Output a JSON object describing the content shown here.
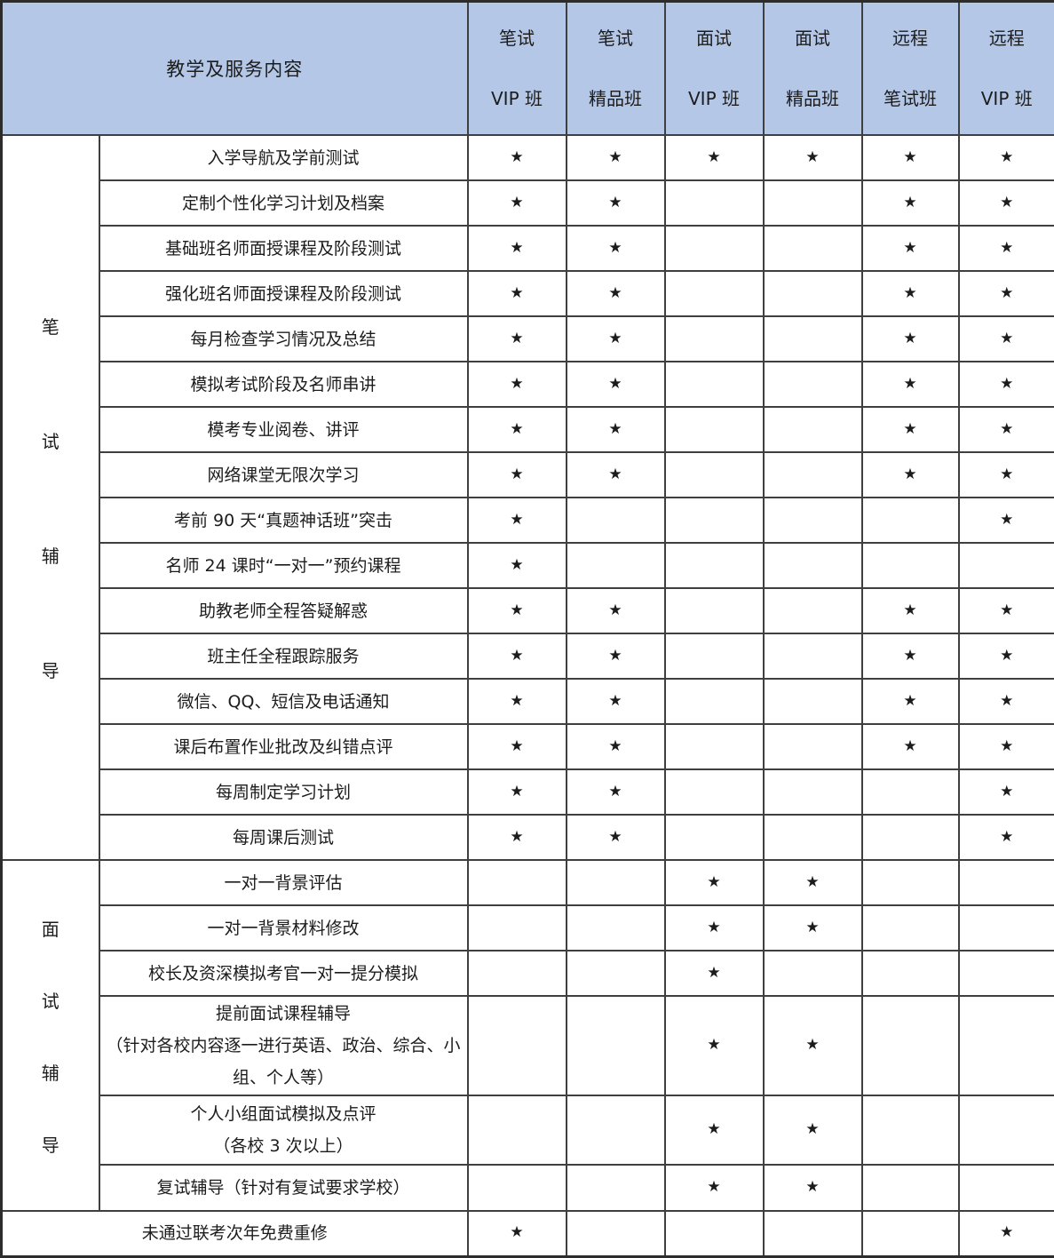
{
  "header": {
    "title": "教学及服务内容",
    "columns": [
      {
        "line1": "笔试",
        "line2": "VIP 班"
      },
      {
        "line1": "笔试",
        "line2": "精品班"
      },
      {
        "line1": "面试",
        "line2": "VIP 班"
      },
      {
        "line1": "面试",
        "line2": "精品班"
      },
      {
        "line1": "远程",
        "line2": "笔试班"
      },
      {
        "line1": "远程",
        "line2": "VIP 班"
      }
    ]
  },
  "star_char": "★",
  "colors": {
    "header_bg": "#b4c7e7",
    "written_section_bg": "#ffe699",
    "interview_section_bg": "#8faadc",
    "border": "#3f3f3f",
    "text": "#1c1c1c"
  },
  "sections": [
    {
      "id": "written",
      "label": "笔试辅导",
      "rows": [
        {
          "label": "入学导航及学前测试",
          "stars": [
            1,
            1,
            1,
            1,
            1,
            1
          ]
        },
        {
          "label": "定制个性化学习计划及档案",
          "stars": [
            1,
            1,
            0,
            0,
            1,
            1
          ]
        },
        {
          "label": "基础班名师面授课程及阶段测试",
          "stars": [
            1,
            1,
            0,
            0,
            1,
            1
          ]
        },
        {
          "label": "强化班名师面授课程及阶段测试",
          "stars": [
            1,
            1,
            0,
            0,
            1,
            1
          ]
        },
        {
          "label": "每月检查学习情况及总结",
          "stars": [
            1,
            1,
            0,
            0,
            1,
            1
          ]
        },
        {
          "label": "模拟考试阶段及名师串讲",
          "stars": [
            1,
            1,
            0,
            0,
            1,
            1
          ]
        },
        {
          "label": "模考专业阅卷、讲评",
          "stars": [
            1,
            1,
            0,
            0,
            1,
            1
          ]
        },
        {
          "label": "网络课堂无限次学习",
          "stars": [
            1,
            1,
            0,
            0,
            1,
            1
          ]
        },
        {
          "label": "考前 90 天“真题神话班”突击",
          "stars": [
            1,
            0,
            0,
            0,
            0,
            1
          ]
        },
        {
          "label": "名师 24 课时“一对一”预约课程",
          "stars": [
            1,
            0,
            0,
            0,
            0,
            0
          ]
        },
        {
          "label": "助教老师全程答疑解惑",
          "stars": [
            1,
            1,
            0,
            0,
            1,
            1
          ]
        },
        {
          "label": "班主任全程跟踪服务",
          "stars": [
            1,
            1,
            0,
            0,
            1,
            1
          ]
        },
        {
          "label": "微信、QQ、短信及电话通知",
          "stars": [
            1,
            1,
            0,
            0,
            1,
            1
          ]
        },
        {
          "label": "课后布置作业批改及纠错点评",
          "stars": [
            1,
            1,
            0,
            0,
            1,
            1
          ]
        },
        {
          "label": "每周制定学习计划",
          "stars": [
            1,
            1,
            0,
            0,
            0,
            1
          ]
        },
        {
          "label": "每周课后测试",
          "stars": [
            1,
            1,
            0,
            0,
            0,
            1
          ]
        }
      ]
    },
    {
      "id": "interview",
      "label": "面试辅导",
      "rows": [
        {
          "label": "一对一背景评估",
          "stars": [
            0,
            0,
            1,
            1,
            0,
            0
          ]
        },
        {
          "label": "一对一背景材料修改",
          "stars": [
            0,
            0,
            1,
            1,
            0,
            0
          ]
        },
        {
          "label": "校长及资深模拟考官一对一提分模拟",
          "stars": [
            0,
            0,
            1,
            0,
            0,
            0
          ]
        },
        {
          "label": "提前面试课程辅导\n（针对各校内容逐一进行英语、政治、综合、小组、个人等）",
          "stars": [
            0,
            0,
            1,
            1,
            0,
            0
          ]
        },
        {
          "label": "个人小组面试模拟及点评\n（各校 3 次以上）",
          "stars": [
            0,
            0,
            1,
            1,
            0,
            0
          ]
        },
        {
          "label": "复试辅导（针对有复试要求学校）",
          "stars": [
            0,
            0,
            1,
            1,
            0,
            0
          ]
        }
      ]
    },
    {
      "id": "footer",
      "label": null,
      "rows": [
        {
          "label": "未通过联考次年免费重修",
          "stars": [
            1,
            0,
            0,
            0,
            0,
            1
          ]
        }
      ]
    }
  ]
}
